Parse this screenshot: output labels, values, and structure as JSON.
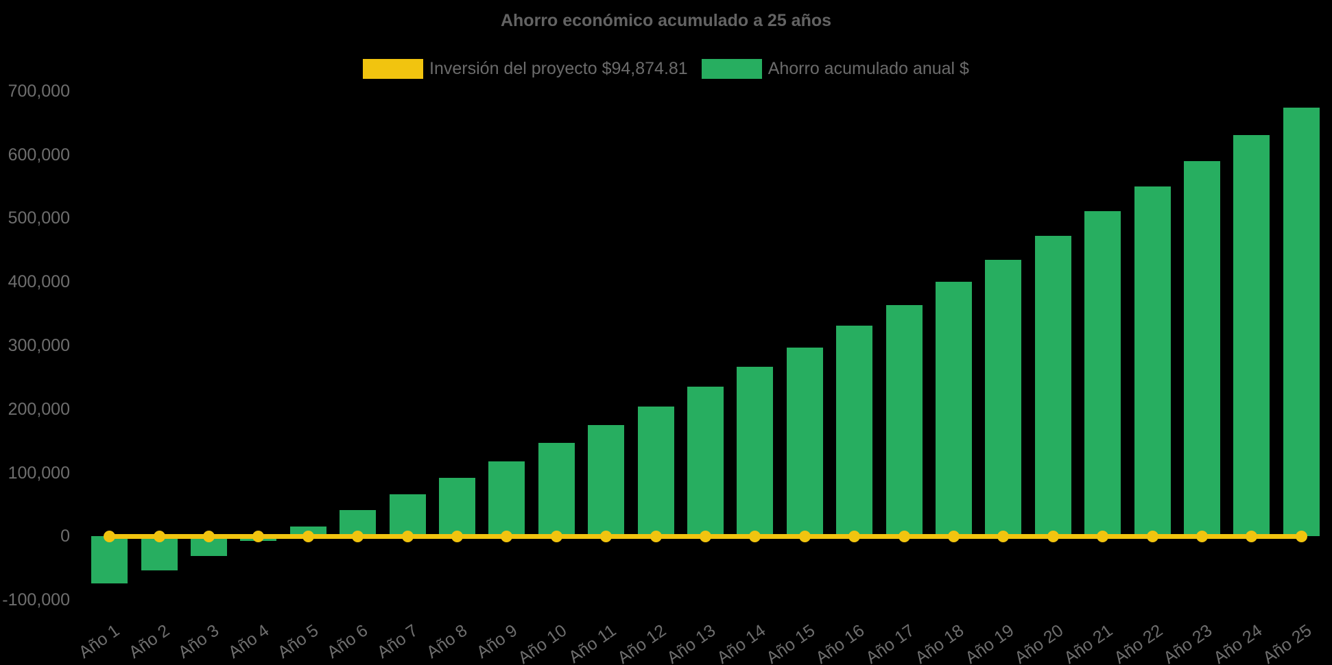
{
  "title": "Ahorro económico acumulado a 25 años",
  "colors": {
    "background": "#000000",
    "text_grey": "#6b6b6b",
    "bar_green": "#27AE60",
    "line_yellow": "#F1C40F"
  },
  "legend": [
    {
      "label": "Inversión del proyecto $94,874.81",
      "color": "#F1C40F",
      "series_type": "line"
    },
    {
      "label": "Ahorro acumulado anual $",
      "color": "#27AE60",
      "series_type": "bar"
    }
  ],
  "chart_data": {
    "type": "bar",
    "title": "Ahorro económico acumulado a 25 años",
    "categories": [
      "Año 1",
      "Año 2",
      "Año 3",
      "Año 4",
      "Año 5",
      "Año 6",
      "Año 7",
      "Año 8",
      "Año 9",
      "Año 10",
      "Año 11",
      "Año 12",
      "Año 13",
      "Año 14",
      "Año 15",
      "Año 16",
      "Año 17",
      "Año 18",
      "Año 19",
      "Año 20",
      "Año 21",
      "Año 22",
      "Año 23",
      "Año 24",
      "Año 25"
    ],
    "series": [
      {
        "name": "Inversión del proyecto $94,874.81",
        "type": "line",
        "color": "#F1C40F",
        "values": [
          0,
          0,
          0,
          0,
          0,
          0,
          0,
          0,
          0,
          0,
          0,
          0,
          0,
          0,
          0,
          0,
          0,
          0,
          0,
          0,
          0,
          0,
          0,
          0,
          0
        ]
      },
      {
        "name": "Ahorro acumulado anual $",
        "type": "bar",
        "color": "#27AE60",
        "values": [
          -74000,
          -54000,
          -31000,
          -7000,
          15000,
          41000,
          66000,
          92000,
          118000,
          147000,
          175000,
          204000,
          235000,
          266000,
          297000,
          331000,
          364000,
          400000,
          435000,
          472000,
          511000,
          550000,
          590000,
          631000,
          674000
        ]
      }
    ],
    "xlabel": "",
    "ylabel": "",
    "ylim": [
      -100000,
      700000
    ],
    "ytick_step": 100000,
    "ytick_labels": [
      "-100,000",
      "0",
      "100,000",
      "200,000",
      "300,000",
      "400,000",
      "500,000",
      "600,000",
      "700,000"
    ],
    "legend_position": "top",
    "grid": false,
    "x_label_rotation_deg": -35
  }
}
